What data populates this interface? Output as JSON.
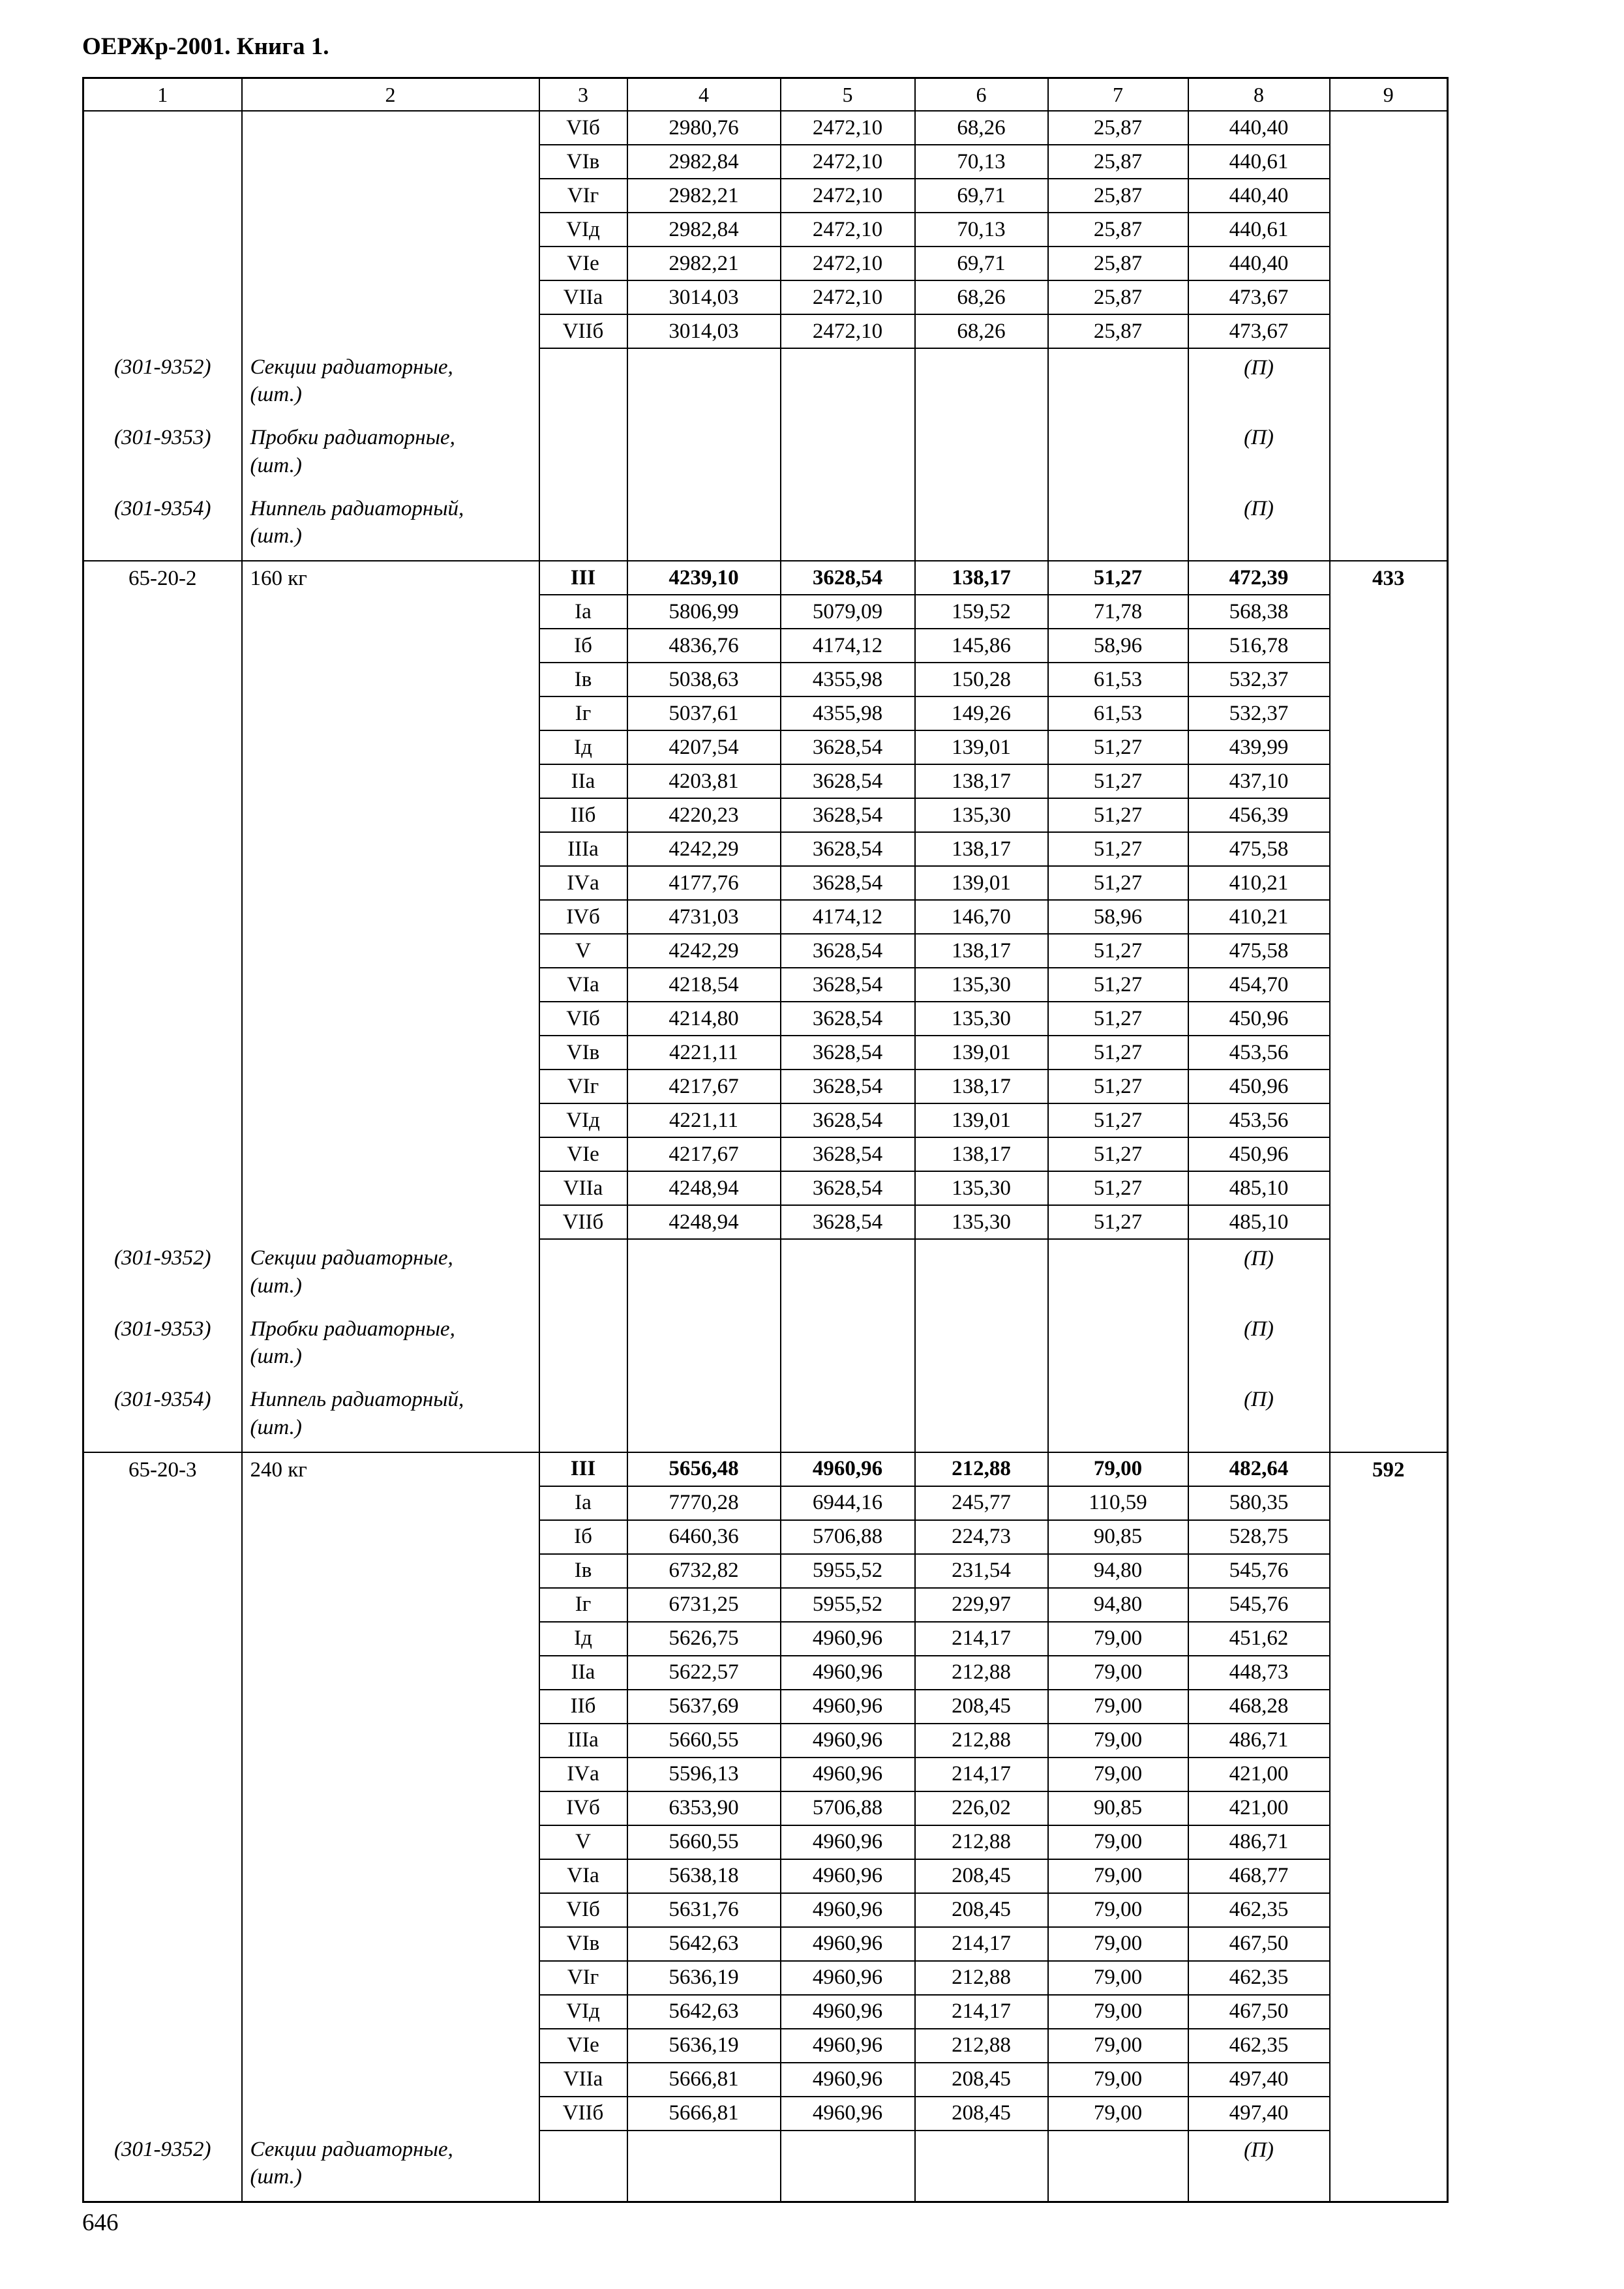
{
  "page": {
    "header": "ОЕРЖр-2001. Книга 1.",
    "page_number": "646"
  },
  "table": {
    "column_headers": [
      "1",
      "2",
      "3",
      "4",
      "5",
      "6",
      "7",
      "8",
      "9"
    ],
    "sections": [
      {
        "code": "",
        "description": "",
        "total": "",
        "rows": [
          {
            "variant": "VIб",
            "bold": false,
            "values": [
              "2980,76",
              "2472,10",
              "68,26",
              "25,87",
              "440,40"
            ]
          },
          {
            "variant": "VIв",
            "bold": false,
            "values": [
              "2982,84",
              "2472,10",
              "70,13",
              "25,87",
              "440,61"
            ]
          },
          {
            "variant": "VIг",
            "bold": false,
            "values": [
              "2982,21",
              "2472,10",
              "69,71",
              "25,87",
              "440,40"
            ]
          },
          {
            "variant": "VIд",
            "bold": false,
            "values": [
              "2982,84",
              "2472,10",
              "70,13",
              "25,87",
              "440,61"
            ]
          },
          {
            "variant": "VIе",
            "bold": false,
            "values": [
              "2982,21",
              "2472,10",
              "69,71",
              "25,87",
              "440,40"
            ]
          },
          {
            "variant": "VIIа",
            "bold": false,
            "values": [
              "3014,03",
              "2472,10",
              "68,26",
              "25,87",
              "473,67"
            ]
          },
          {
            "variant": "VIIб",
            "bold": false,
            "values": [
              "3014,03",
              "2472,10",
              "68,26",
              "25,87",
              "473,67"
            ]
          }
        ],
        "resources": [
          {
            "code": "(301-9352)",
            "name": "Секции радиаторные,",
            "unit": "(шт.)",
            "mark": "(П)"
          },
          {
            "code": "(301-9353)",
            "name": "Пробки радиаторные,",
            "unit": "(шт.)",
            "mark": "(П)"
          },
          {
            "code": "(301-9354)",
            "name": "Ниппель радиаторный,",
            "unit": "(шт.)",
            "mark": "(П)"
          }
        ]
      },
      {
        "code": "65-20-2",
        "description": "160 кг",
        "total": "433",
        "rows": [
          {
            "variant": "III",
            "bold": true,
            "values": [
              "4239,10",
              "3628,54",
              "138,17",
              "51,27",
              "472,39"
            ]
          },
          {
            "variant": "Iа",
            "bold": false,
            "values": [
              "5806,99",
              "5079,09",
              "159,52",
              "71,78",
              "568,38"
            ]
          },
          {
            "variant": "Iб",
            "bold": false,
            "values": [
              "4836,76",
              "4174,12",
              "145,86",
              "58,96",
              "516,78"
            ]
          },
          {
            "variant": "Iв",
            "bold": false,
            "values": [
              "5038,63",
              "4355,98",
              "150,28",
              "61,53",
              "532,37"
            ]
          },
          {
            "variant": "Iг",
            "bold": false,
            "values": [
              "5037,61",
              "4355,98",
              "149,26",
              "61,53",
              "532,37"
            ]
          },
          {
            "variant": "Iд",
            "bold": false,
            "values": [
              "4207,54",
              "3628,54",
              "139,01",
              "51,27",
              "439,99"
            ]
          },
          {
            "variant": "IIа",
            "bold": false,
            "values": [
              "4203,81",
              "3628,54",
              "138,17",
              "51,27",
              "437,10"
            ]
          },
          {
            "variant": "IIб",
            "bold": false,
            "values": [
              "4220,23",
              "3628,54",
              "135,30",
              "51,27",
              "456,39"
            ]
          },
          {
            "variant": "IIIа",
            "bold": false,
            "values": [
              "4242,29",
              "3628,54",
              "138,17",
              "51,27",
              "475,58"
            ]
          },
          {
            "variant": "IVа",
            "bold": false,
            "values": [
              "4177,76",
              "3628,54",
              "139,01",
              "51,27",
              "410,21"
            ]
          },
          {
            "variant": "IVб",
            "bold": false,
            "values": [
              "4731,03",
              "4174,12",
              "146,70",
              "58,96",
              "410,21"
            ]
          },
          {
            "variant": "V",
            "bold": false,
            "values": [
              "4242,29",
              "3628,54",
              "138,17",
              "51,27",
              "475,58"
            ]
          },
          {
            "variant": "VIа",
            "bold": false,
            "values": [
              "4218,54",
              "3628,54",
              "135,30",
              "51,27",
              "454,70"
            ]
          },
          {
            "variant": "VIб",
            "bold": false,
            "values": [
              "4214,80",
              "3628,54",
              "135,30",
              "51,27",
              "450,96"
            ]
          },
          {
            "variant": "VIв",
            "bold": false,
            "values": [
              "4221,11",
              "3628,54",
              "139,01",
              "51,27",
              "453,56"
            ]
          },
          {
            "variant": "VIг",
            "bold": false,
            "values": [
              "4217,67",
              "3628,54",
              "138,17",
              "51,27",
              "450,96"
            ]
          },
          {
            "variant": "VIд",
            "bold": false,
            "values": [
              "4221,11",
              "3628,54",
              "139,01",
              "51,27",
              "453,56"
            ]
          },
          {
            "variant": "VIе",
            "bold": false,
            "values": [
              "4217,67",
              "3628,54",
              "138,17",
              "51,27",
              "450,96"
            ]
          },
          {
            "variant": "VIIа",
            "bold": false,
            "values": [
              "4248,94",
              "3628,54",
              "135,30",
              "51,27",
              "485,10"
            ]
          },
          {
            "variant": "VIIб",
            "bold": false,
            "values": [
              "4248,94",
              "3628,54",
              "135,30",
              "51,27",
              "485,10"
            ]
          }
        ],
        "resources": [
          {
            "code": "(301-9352)",
            "name": "Секции радиаторные,",
            "unit": "(шт.)",
            "mark": "(П)"
          },
          {
            "code": "(301-9353)",
            "name": "Пробки радиаторные,",
            "unit": "(шт.)",
            "mark": "(П)"
          },
          {
            "code": "(301-9354)",
            "name": "Ниппель радиаторный,",
            "unit": "(шт.)",
            "mark": "(П)"
          }
        ]
      },
      {
        "code": "65-20-3",
        "description": "240 кг",
        "total": "592",
        "rows": [
          {
            "variant": "III",
            "bold": true,
            "values": [
              "5656,48",
              "4960,96",
              "212,88",
              "79,00",
              "482,64"
            ]
          },
          {
            "variant": "Iа",
            "bold": false,
            "values": [
              "7770,28",
              "6944,16",
              "245,77",
              "110,59",
              "580,35"
            ]
          },
          {
            "variant": "Iб",
            "bold": false,
            "values": [
              "6460,36",
              "5706,88",
              "224,73",
              "90,85",
              "528,75"
            ]
          },
          {
            "variant": "Iв",
            "bold": false,
            "values": [
              "6732,82",
              "5955,52",
              "231,54",
              "94,80",
              "545,76"
            ]
          },
          {
            "variant": "Iг",
            "bold": false,
            "values": [
              "6731,25",
              "5955,52",
              "229,97",
              "94,80",
              "545,76"
            ]
          },
          {
            "variant": "Iд",
            "bold": false,
            "values": [
              "5626,75",
              "4960,96",
              "214,17",
              "79,00",
              "451,62"
            ]
          },
          {
            "variant": "IIа",
            "bold": false,
            "values": [
              "5622,57",
              "4960,96",
              "212,88",
              "79,00",
              "448,73"
            ]
          },
          {
            "variant": "IIб",
            "bold": false,
            "values": [
              "5637,69",
              "4960,96",
              "208,45",
              "79,00",
              "468,28"
            ]
          },
          {
            "variant": "IIIа",
            "bold": false,
            "values": [
              "5660,55",
              "4960,96",
              "212,88",
              "79,00",
              "486,71"
            ]
          },
          {
            "variant": "IVа",
            "bold": false,
            "values": [
              "5596,13",
              "4960,96",
              "214,17",
              "79,00",
              "421,00"
            ]
          },
          {
            "variant": "IVб",
            "bold": false,
            "values": [
              "6353,90",
              "5706,88",
              "226,02",
              "90,85",
              "421,00"
            ]
          },
          {
            "variant": "V",
            "bold": false,
            "values": [
              "5660,55",
              "4960,96",
              "212,88",
              "79,00",
              "486,71"
            ]
          },
          {
            "variant": "VIа",
            "bold": false,
            "values": [
              "5638,18",
              "4960,96",
              "208,45",
              "79,00",
              "468,77"
            ]
          },
          {
            "variant": "VIб",
            "bold": false,
            "values": [
              "5631,76",
              "4960,96",
              "208,45",
              "79,00",
              "462,35"
            ]
          },
          {
            "variant": "VIв",
            "bold": false,
            "values": [
              "5642,63",
              "4960,96",
              "214,17",
              "79,00",
              "467,50"
            ]
          },
          {
            "variant": "VIг",
            "bold": false,
            "values": [
              "5636,19",
              "4960,96",
              "212,88",
              "79,00",
              "462,35"
            ]
          },
          {
            "variant": "VIд",
            "bold": false,
            "values": [
              "5642,63",
              "4960,96",
              "214,17",
              "79,00",
              "467,50"
            ]
          },
          {
            "variant": "VIе",
            "bold": false,
            "values": [
              "5636,19",
              "4960,96",
              "212,88",
              "79,00",
              "462,35"
            ]
          },
          {
            "variant": "VIIа",
            "bold": false,
            "values": [
              "5666,81",
              "4960,96",
              "208,45",
              "79,00",
              "497,40"
            ]
          },
          {
            "variant": "VIIб",
            "bold": false,
            "values": [
              "5666,81",
              "4960,96",
              "208,45",
              "79,00",
              "497,40"
            ]
          }
        ],
        "resources": [
          {
            "code": "(301-9352)",
            "name": "Секции радиаторные,",
            "unit": "(шт.)",
            "mark": "(П)"
          }
        ]
      }
    ]
  }
}
